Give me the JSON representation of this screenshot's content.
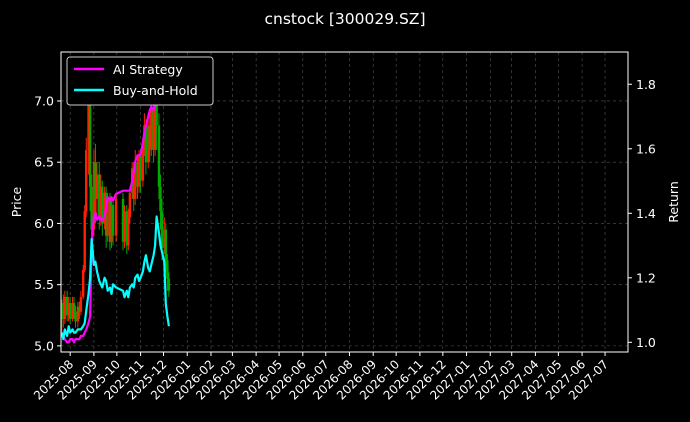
{
  "chart_data": {
    "type": "line",
    "title": "cnstock [300029.SZ]",
    "ylabel_left": "Price",
    "ylabel_right": "Return",
    "ylim_left": [
      4.95,
      7.4
    ],
    "ylim_right": [
      0.97,
      1.9
    ],
    "left_ticks": [
      "5.0",
      "5.5",
      "6.0",
      "6.5",
      "7.0"
    ],
    "right_ticks": [
      "1.0",
      "1.2",
      "1.4",
      "1.6",
      "1.8"
    ],
    "x_range": [
      "2025-07-20",
      "2027-07-31"
    ],
    "x_ticks": [
      "2025-08",
      "2025-09",
      "2025-10",
      "2025-11",
      "2025-12",
      "2026-01",
      "2026-02",
      "2026-03",
      "2026-04",
      "2026-05",
      "2026-06",
      "2026-07",
      "2026-08",
      "2026-09",
      "2026-10",
      "2026-11",
      "2026-12",
      "2027-01",
      "2027-02",
      "2027-03",
      "2027-04",
      "2027-05",
      "2027-06",
      "2027-07"
    ],
    "grid": true,
    "legend_position": "top-left",
    "colors": {
      "ai": "#ff00ff",
      "bh": "#00ffff",
      "candle_up": "#ff2200",
      "candle_down": "#00aa00",
      "grid": "#555555",
      "background": "#000000",
      "text": "#ffffff"
    },
    "series": [
      {
        "name": "AI Strategy",
        "color": "#ff00ff",
        "points": [
          [
            "2025-07-21",
            1.03
          ],
          [
            "2025-07-23",
            1.02
          ],
          [
            "2025-07-25",
            1.01
          ],
          [
            "2025-07-28",
            1.0
          ],
          [
            "2025-07-30",
            1.0
          ],
          [
            "2025-08-01",
            1.01
          ],
          [
            "2025-08-04",
            1.01
          ],
          [
            "2025-08-06",
            1.0
          ],
          [
            "2025-08-08",
            1.01
          ],
          [
            "2025-08-11",
            1.01
          ],
          [
            "2025-08-13",
            1.01
          ],
          [
            "2025-08-15",
            1.02
          ],
          [
            "2025-08-18",
            1.02
          ],
          [
            "2025-08-20",
            1.03
          ],
          [
            "2025-08-22",
            1.04
          ],
          [
            "2025-08-25",
            1.06
          ],
          [
            "2025-08-27",
            1.08
          ],
          [
            "2025-08-29",
            1.3
          ],
          [
            "2025-09-01",
            1.39
          ],
          [
            "2025-09-03",
            1.4
          ],
          [
            "2025-09-05",
            1.38
          ],
          [
            "2025-09-08",
            1.39
          ],
          [
            "2025-09-10",
            1.38
          ],
          [
            "2025-09-12",
            1.38
          ],
          [
            "2025-09-15",
            1.39
          ],
          [
            "2025-09-17",
            1.42
          ],
          [
            "2025-09-19",
            1.45
          ],
          [
            "2025-09-22",
            1.44
          ],
          [
            "2025-09-24",
            1.45
          ],
          [
            "2025-09-26",
            1.44
          ],
          [
            "2025-09-30",
            1.46
          ],
          [
            "2025-10-09",
            1.47
          ],
          [
            "2025-10-11",
            1.47
          ],
          [
            "2025-10-14",
            1.47
          ],
          [
            "2025-10-16",
            1.47
          ],
          [
            "2025-10-18",
            1.47
          ],
          [
            "2025-10-21",
            1.5
          ],
          [
            "2025-10-23",
            1.53
          ],
          [
            "2025-10-25",
            1.56
          ],
          [
            "2025-10-28",
            1.58
          ],
          [
            "2025-10-30",
            1.58
          ],
          [
            "2025-11-01",
            1.58
          ],
          [
            "2025-11-04",
            1.62
          ],
          [
            "2025-11-06",
            1.65
          ],
          [
            "2025-11-08",
            1.67
          ],
          [
            "2025-11-11",
            1.7
          ],
          [
            "2025-11-13",
            1.72
          ],
          [
            "2025-11-15",
            1.73
          ],
          [
            "2025-11-18",
            1.72
          ],
          [
            "2025-11-20",
            1.75
          ],
          [
            "2025-11-22",
            1.78
          ],
          [
            "2025-11-25",
            1.82
          ],
          [
            "2025-11-27",
            1.83
          ],
          [
            "2025-11-29",
            1.81
          ],
          [
            "2025-12-02",
            1.83
          ],
          [
            "2025-12-04",
            1.84
          ],
          [
            "2025-12-06",
            1.82
          ],
          [
            "2025-12-08",
            1.8
          ]
        ]
      },
      {
        "name": "Buy-and-Hold",
        "color": "#00ffff",
        "points": [
          [
            "2025-07-21",
            1.03
          ],
          [
            "2025-07-23",
            1.01
          ],
          [
            "2025-07-25",
            1.04
          ],
          [
            "2025-07-28",
            1.02
          ],
          [
            "2025-07-30",
            1.05
          ],
          [
            "2025-08-01",
            1.03
          ],
          [
            "2025-08-04",
            1.04
          ],
          [
            "2025-08-06",
            1.03
          ],
          [
            "2025-08-08",
            1.03
          ],
          [
            "2025-08-11",
            1.04
          ],
          [
            "2025-08-13",
            1.04
          ],
          [
            "2025-08-15",
            1.04
          ],
          [
            "2025-08-18",
            1.05
          ],
          [
            "2025-08-20",
            1.06
          ],
          [
            "2025-08-22",
            1.1
          ],
          [
            "2025-08-25",
            1.15
          ],
          [
            "2025-08-27",
            1.2
          ],
          [
            "2025-08-29",
            1.32
          ],
          [
            "2025-09-01",
            1.24
          ],
          [
            "2025-09-03",
            1.25
          ],
          [
            "2025-09-05",
            1.22
          ],
          [
            "2025-09-08",
            1.19
          ],
          [
            "2025-09-10",
            1.18
          ],
          [
            "2025-09-12",
            1.17
          ],
          [
            "2025-09-15",
            1.2
          ],
          [
            "2025-09-17",
            1.19
          ],
          [
            "2025-09-19",
            1.16
          ],
          [
            "2025-09-22",
            1.17
          ],
          [
            "2025-09-24",
            1.15
          ],
          [
            "2025-09-26",
            1.18
          ],
          [
            "2025-09-30",
            1.17
          ],
          [
            "2025-10-09",
            1.16
          ],
          [
            "2025-10-11",
            1.14
          ],
          [
            "2025-10-14",
            1.16
          ],
          [
            "2025-10-16",
            1.14
          ],
          [
            "2025-10-18",
            1.17
          ],
          [
            "2025-10-21",
            1.18
          ],
          [
            "2025-10-23",
            1.17
          ],
          [
            "2025-10-25",
            1.2
          ],
          [
            "2025-10-28",
            1.21
          ],
          [
            "2025-10-30",
            1.19
          ],
          [
            "2025-11-01",
            1.2
          ],
          [
            "2025-11-04",
            1.22
          ],
          [
            "2025-11-06",
            1.25
          ],
          [
            "2025-11-08",
            1.27
          ],
          [
            "2025-11-11",
            1.23
          ],
          [
            "2025-11-13",
            1.22
          ],
          [
            "2025-11-15",
            1.24
          ],
          [
            "2025-11-18",
            1.27
          ],
          [
            "2025-11-20",
            1.3
          ],
          [
            "2025-11-22",
            1.39
          ],
          [
            "2025-11-25",
            1.34
          ],
          [
            "2025-11-27",
            1.3
          ],
          [
            "2025-11-29",
            1.28
          ],
          [
            "2025-12-02",
            1.25
          ],
          [
            "2025-12-04",
            1.12
          ],
          [
            "2025-12-06",
            1.08
          ],
          [
            "2025-12-08",
            1.05
          ]
        ]
      }
    ],
    "price_candles": [
      [
        "2025-07-21",
        5.22,
        5.35,
        5.1,
        5.38
      ],
      [
        "2025-07-23",
        5.35,
        5.22,
        5.15,
        5.42
      ],
      [
        "2025-07-25",
        5.22,
        5.4,
        5.18,
        5.45
      ],
      [
        "2025-07-28",
        5.4,
        5.25,
        5.2,
        5.45
      ],
      [
        "2025-07-30",
        5.25,
        5.35,
        5.2,
        5.4
      ],
      [
        "2025-08-01",
        5.35,
        5.22,
        5.18,
        5.4
      ],
      [
        "2025-08-04",
        5.22,
        5.35,
        5.2,
        5.4
      ],
      [
        "2025-08-06",
        5.35,
        5.28,
        5.22,
        5.4
      ],
      [
        "2025-08-08",
        5.28,
        5.2,
        5.15,
        5.33
      ],
      [
        "2025-08-11",
        5.2,
        5.32,
        5.15,
        5.36
      ],
      [
        "2025-08-13",
        5.32,
        5.28,
        5.22,
        5.36
      ],
      [
        "2025-08-15",
        5.28,
        5.4,
        5.25,
        5.45
      ],
      [
        "2025-08-18",
        5.4,
        5.62,
        5.38,
        5.66
      ],
      [
        "2025-08-20",
        5.62,
        6.1,
        5.6,
        6.15
      ],
      [
        "2025-08-22",
        6.1,
        6.6,
        6.05,
        6.7
      ],
      [
        "2025-08-25",
        6.6,
        7.0,
        6.4,
        7.08
      ],
      [
        "2025-08-27",
        7.0,
        6.3,
        6.1,
        7.05
      ],
      [
        "2025-08-29",
        6.3,
        5.95,
        5.8,
        6.4
      ],
      [
        "2025-09-01",
        5.95,
        6.5,
        5.9,
        6.6
      ],
      [
        "2025-09-03",
        6.5,
        6.2,
        6.0,
        6.65
      ],
      [
        "2025-09-05",
        6.2,
        6.4,
        6.05,
        6.5
      ],
      [
        "2025-09-08",
        6.4,
        6.05,
        5.95,
        6.5
      ],
      [
        "2025-09-10",
        6.05,
        6.3,
        5.98,
        6.4
      ],
      [
        "2025-09-12",
        6.3,
        6.0,
        5.9,
        6.35
      ],
      [
        "2025-09-15",
        6.0,
        6.25,
        5.95,
        6.3
      ],
      [
        "2025-09-17",
        6.25,
        5.9,
        5.8,
        6.3
      ],
      [
        "2025-09-19",
        5.9,
        6.2,
        5.85,
        6.25
      ],
      [
        "2025-09-22",
        6.2,
        5.85,
        5.78,
        6.25
      ],
      [
        "2025-09-24",
        5.85,
        6.15,
        5.8,
        6.2
      ],
      [
        "2025-09-26",
        6.15,
        5.9,
        5.82,
        6.2
      ],
      [
        "2025-09-30",
        5.9,
        6.2,
        5.85,
        6.25
      ],
      [
        "2025-10-09",
        6.2,
        5.85,
        5.78,
        6.25
      ],
      [
        "2025-10-11",
        5.85,
        6.1,
        5.8,
        6.15
      ],
      [
        "2025-10-14",
        6.1,
        5.82,
        5.75,
        6.15
      ],
      [
        "2025-10-16",
        5.82,
        6.05,
        5.78,
        6.12
      ],
      [
        "2025-10-18",
        6.05,
        6.25,
        6.0,
        6.3
      ],
      [
        "2025-10-21",
        6.25,
        6.45,
        6.2,
        6.5
      ],
      [
        "2025-10-23",
        6.45,
        6.2,
        6.1,
        6.5
      ],
      [
        "2025-10-25",
        6.2,
        6.5,
        6.15,
        6.6
      ],
      [
        "2025-10-28",
        6.5,
        6.3,
        6.2,
        6.55
      ],
      [
        "2025-10-30",
        6.3,
        6.55,
        6.25,
        6.6
      ],
      [
        "2025-11-01",
        6.55,
        6.35,
        6.25,
        6.6
      ],
      [
        "2025-11-04",
        6.35,
        6.6,
        6.3,
        6.7
      ],
      [
        "2025-11-06",
        6.6,
        6.8,
        6.55,
        6.9
      ],
      [
        "2025-11-08",
        6.8,
        6.5,
        6.4,
        6.85
      ],
      [
        "2025-11-11",
        6.5,
        6.8,
        6.45,
        6.9
      ],
      [
        "2025-11-13",
        6.8,
        6.6,
        6.5,
        6.9
      ],
      [
        "2025-11-15",
        6.6,
        6.95,
        6.55,
        7.05
      ],
      [
        "2025-11-18",
        6.95,
        6.6,
        6.5,
        7.0
      ],
      [
        "2025-11-20",
        6.6,
        7.1,
        6.55,
        7.2
      ],
      [
        "2025-11-22",
        7.1,
        6.8,
        6.6,
        7.2
      ],
      [
        "2025-11-25",
        6.8,
        6.3,
        6.2,
        6.9
      ],
      [
        "2025-11-27",
        6.3,
        6.1,
        5.95,
        6.4
      ],
      [
        "2025-11-29",
        6.1,
        5.8,
        5.7,
        6.2
      ],
      [
        "2025-12-02",
        5.8,
        5.95,
        5.75,
        6.05
      ],
      [
        "2025-12-04",
        5.95,
        5.7,
        5.6,
        6.0
      ],
      [
        "2025-12-06",
        5.7,
        5.55,
        5.45,
        5.75
      ],
      [
        "2025-12-08",
        5.55,
        5.45,
        5.4,
        5.6
      ]
    ]
  }
}
